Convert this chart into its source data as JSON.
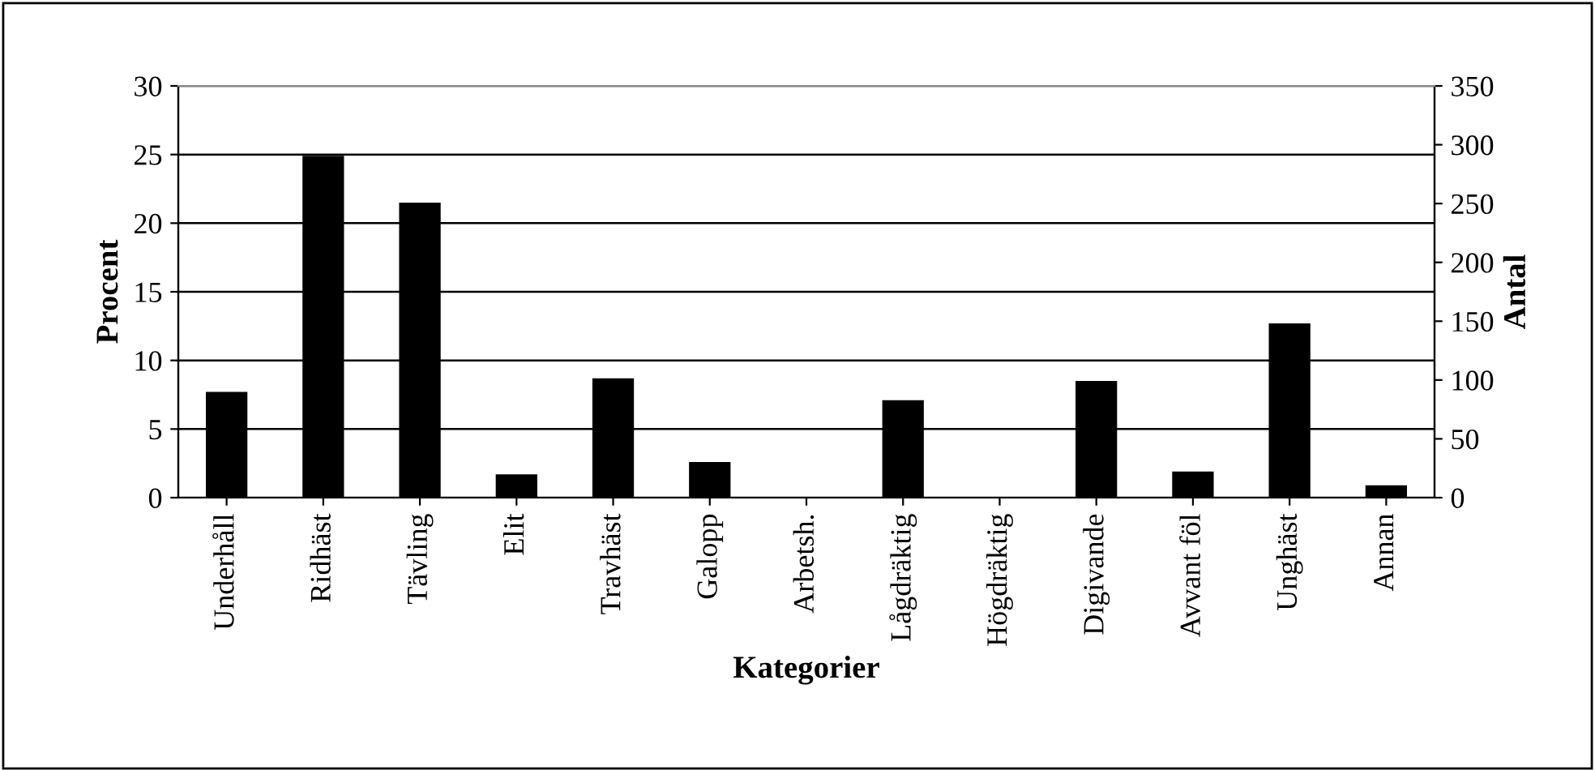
{
  "chart_data": {
    "type": "bar",
    "xlabel": "Kategorier",
    "ylabel": "Procent",
    "y2label": "Antal",
    "categories": [
      "Underhåll",
      "Ridhäst",
      "Tävling",
      "Elit",
      "Travhäst",
      "Galopp",
      "Arbetsh.",
      "Lågdräktig",
      "Högdräktig",
      "Digivande",
      "Avvant föl",
      "Unghäst",
      "Annan"
    ],
    "values": [
      7.7,
      24.9,
      21.5,
      1.7,
      8.7,
      2.6,
      0,
      7.1,
      0,
      8.5,
      1.9,
      12.7,
      0.9
    ],
    "color": "#000000",
    "ylim": [
      0,
      30
    ],
    "yticks": [
      0,
      5,
      10,
      15,
      20,
      25,
      30
    ],
    "y2lim": [
      0,
      350
    ],
    "y2ticks": [
      0,
      50,
      100,
      150,
      200,
      250,
      300,
      350
    ],
    "grid": "y",
    "legend": false
  }
}
